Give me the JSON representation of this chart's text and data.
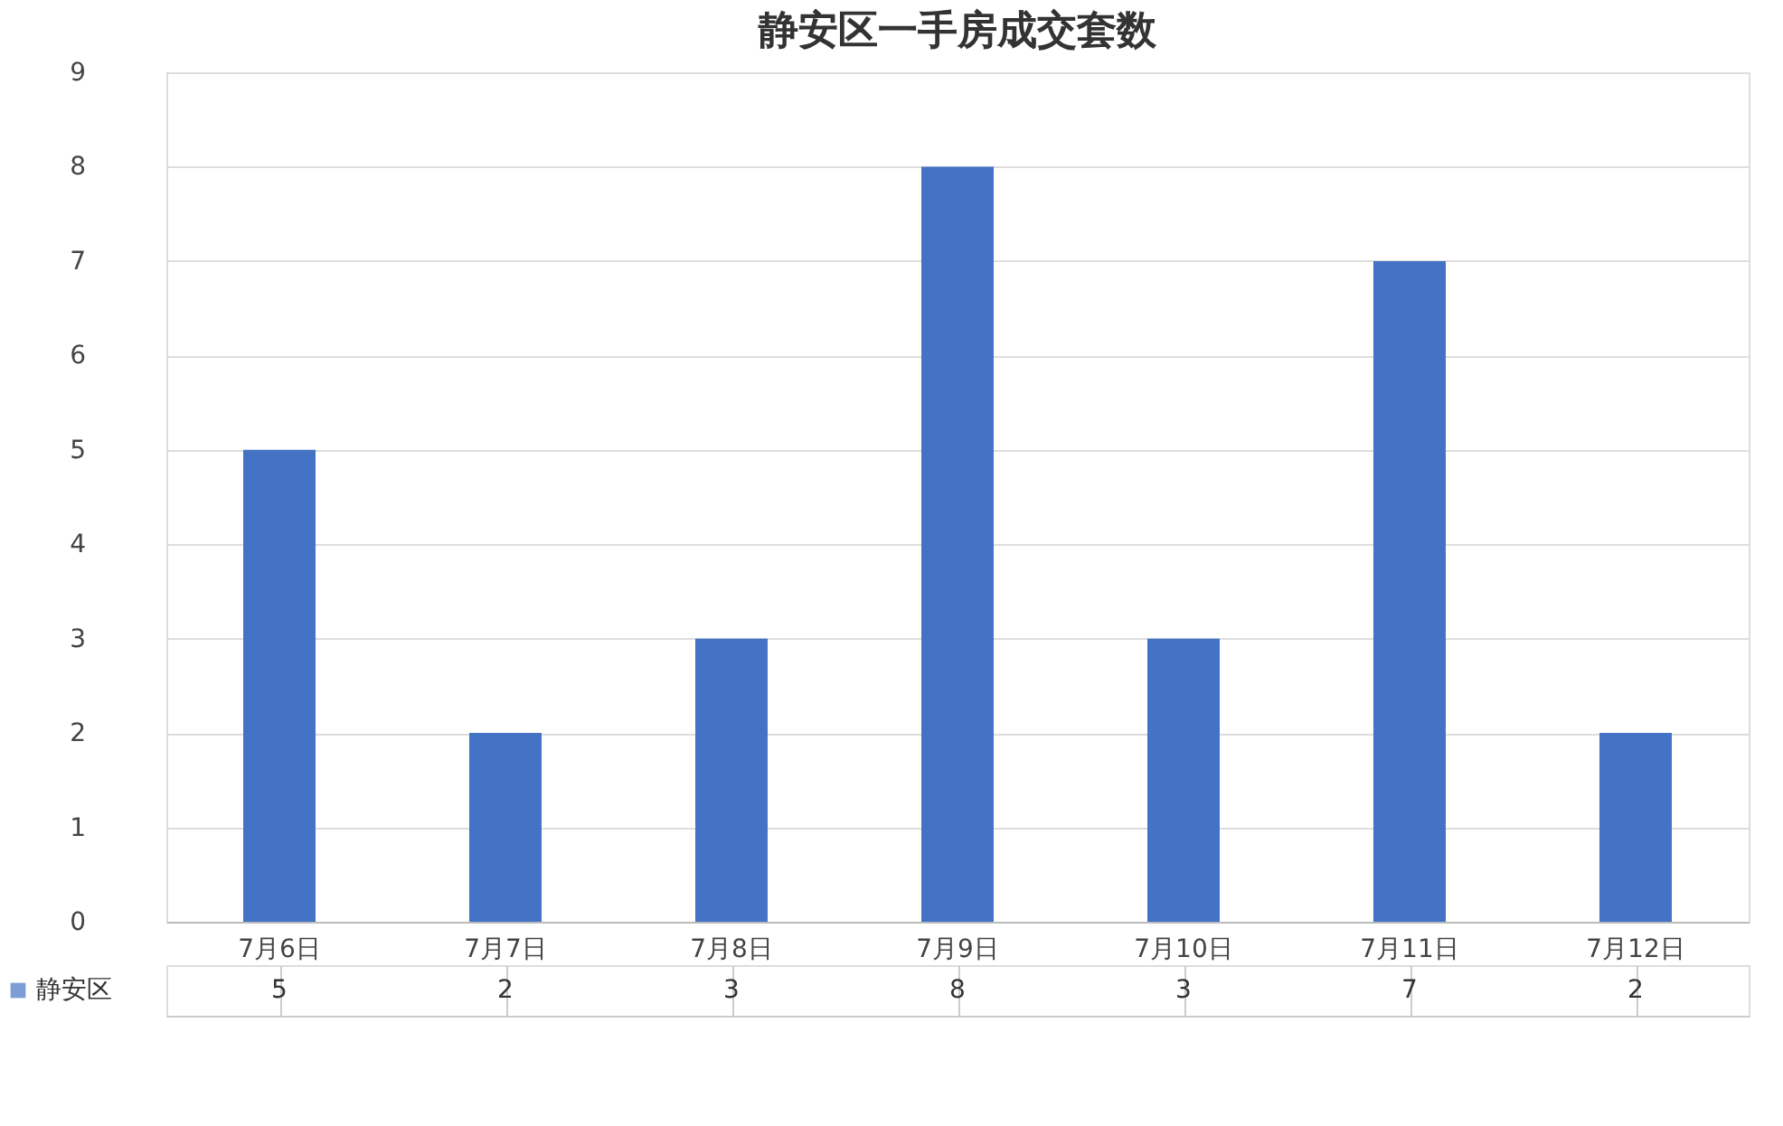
{
  "chart_data": {
    "type": "bar",
    "title": "静安区一手房成交套数",
    "categories": [
      "7月6日",
      "7月7日",
      "7月8日",
      "7月9日",
      "7月10日",
      "7月11日",
      "7月12日"
    ],
    "series": [
      {
        "name": "静安区",
        "color": "#4472c4",
        "values": [
          5,
          2,
          3,
          8,
          3,
          7,
          2
        ]
      }
    ],
    "ylim": [
      0,
      9
    ],
    "yticks": [
      0,
      1,
      2,
      3,
      4,
      5,
      6,
      7,
      8,
      9
    ],
    "grid": "y",
    "legend": "bottom left",
    "data_labels": true
  }
}
